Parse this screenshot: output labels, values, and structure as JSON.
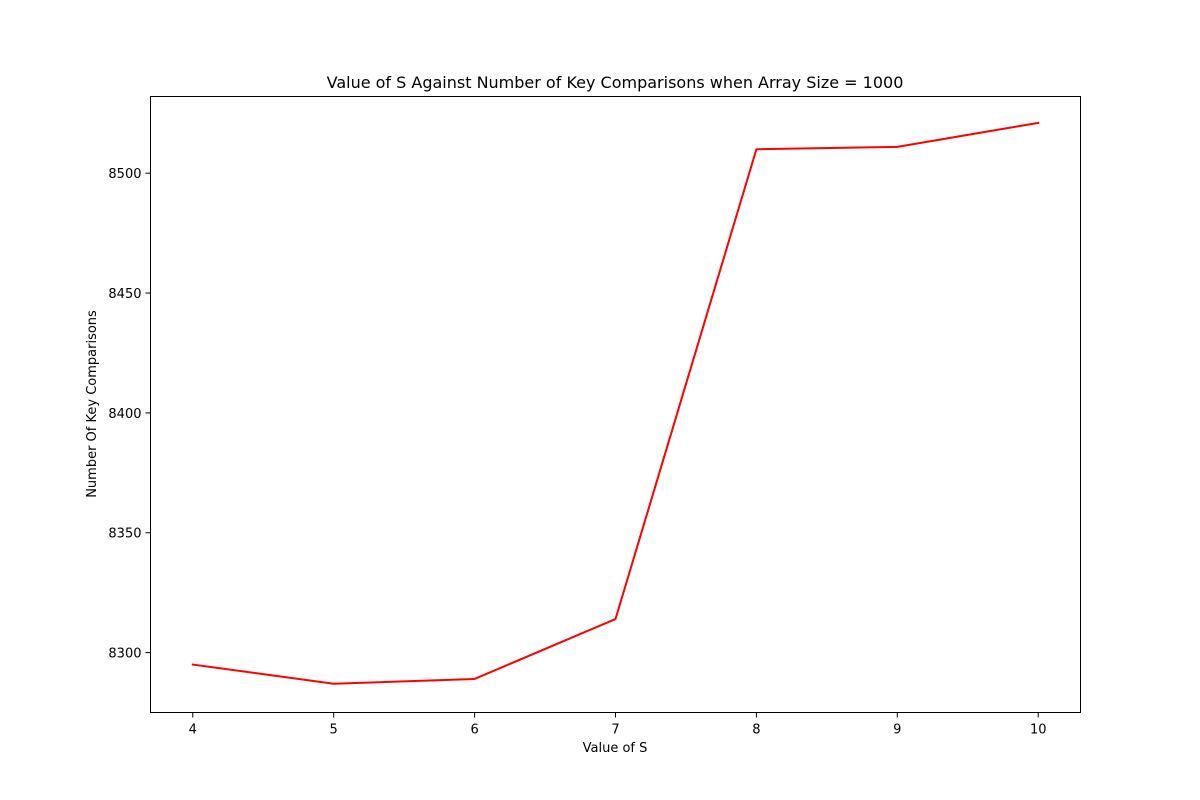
{
  "chart_data": {
    "type": "line",
    "title": "Value of S Against Number of Key Comparisons when Array Size = 1000",
    "xlabel": "Value of S",
    "ylabel": "Number Of Key Comparisons",
    "x": [
      4,
      5,
      6,
      7,
      8,
      9,
      10
    ],
    "x_ticks": [
      "4",
      "5",
      "6",
      "7",
      "8",
      "9",
      "10"
    ],
    "y_ticks": [
      "8300",
      "8350",
      "8400",
      "8450",
      "8500"
    ],
    "xlim": [
      3.7,
      10.3
    ],
    "ylim": [
      8275,
      8532
    ],
    "grid": false,
    "series": [
      {
        "values": [
          8295,
          8287,
          8289,
          8314,
          8510,
          8511,
          8521
        ],
        "color": "#ff0000"
      }
    ]
  }
}
